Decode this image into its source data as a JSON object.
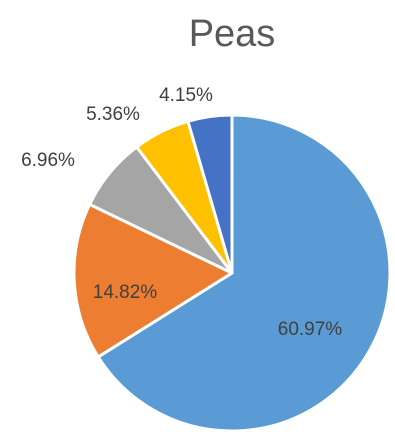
{
  "chart_data": {
    "type": "pie",
    "title": "Peas",
    "start_angle_deg": 0,
    "direction": "clockwise",
    "slices": [
      {
        "value": 60.97,
        "label": "60.97%",
        "color": "#5B9BD5",
        "label_placement": "inside"
      },
      {
        "value": 14.82,
        "label": "14.82%",
        "color": "#ED7D31",
        "label_placement": "inside"
      },
      {
        "value": 6.96,
        "label": "6.96%",
        "color": "#A5A5A5",
        "label_placement": "outside"
      },
      {
        "value": 5.36,
        "label": "5.36%",
        "color": "#FFC000",
        "label_placement": "outside"
      },
      {
        "value": 4.15,
        "label": "4.15%",
        "color": "#4472C4",
        "label_placement": "outside"
      }
    ],
    "legend": "none"
  }
}
